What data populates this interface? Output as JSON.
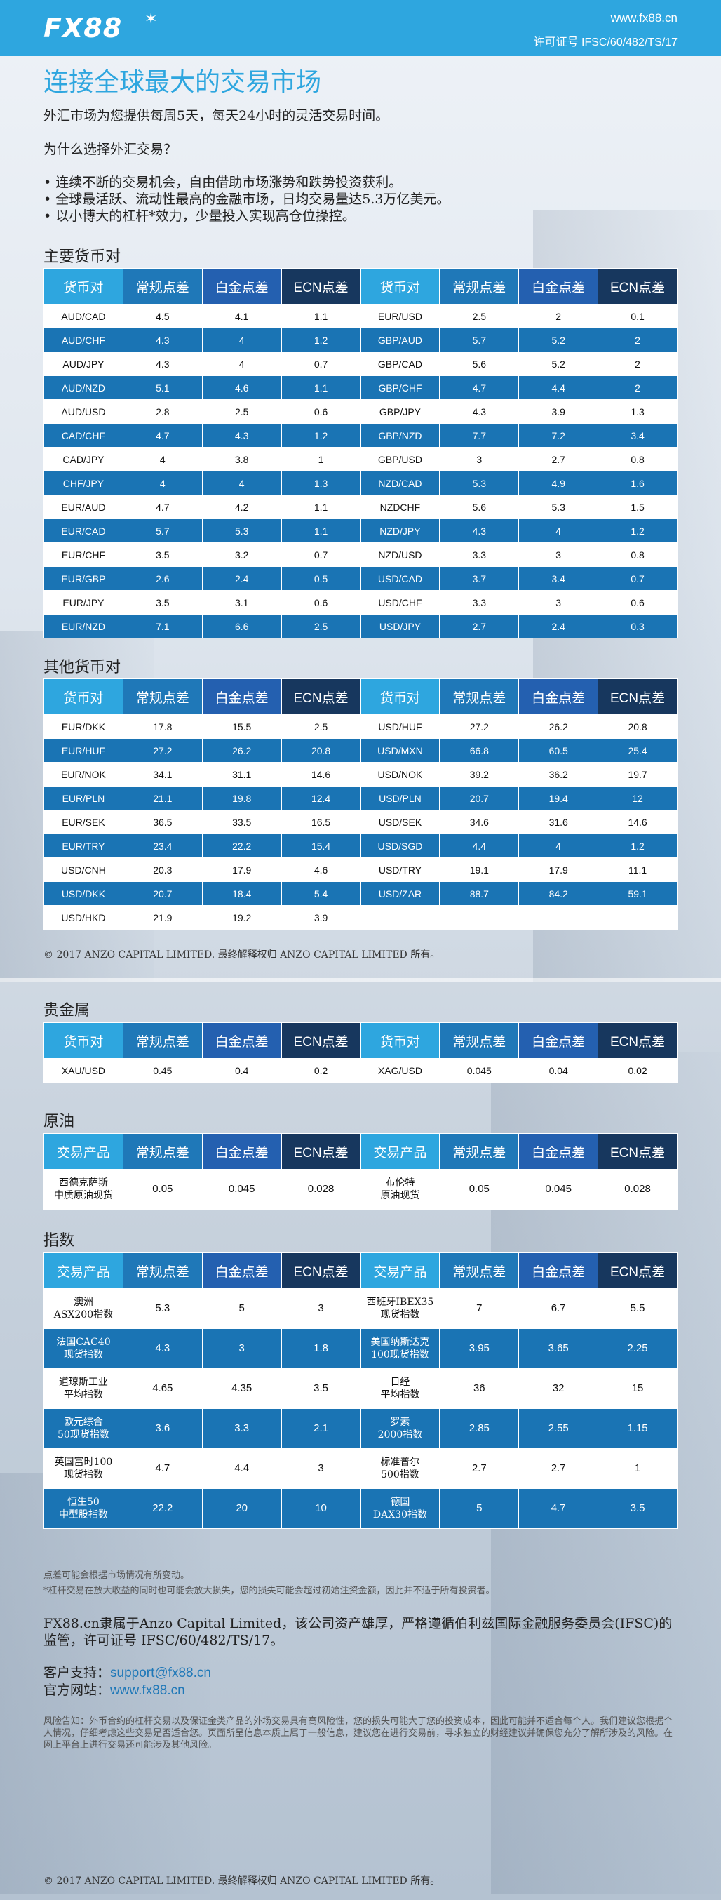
{
  "header": {
    "logo": "FX88",
    "site": "www.fx88.cn",
    "license": "许可证号 IFSC/60/482/TS/17"
  },
  "intro": {
    "title": "连接全球最大的交易市场",
    "subtitle": "外汇市场为您提供每周5天，每天24小时的灵活交易时间。",
    "why": "为什么选择外汇交易？",
    "bullets": [
      "• 连续不断的交易机会，自由借助市场涨势和跌势投资获利。",
      "• 全球最活跃、流动性最高的金融市场，日均交易量达5.3万亿美元。",
      "• 以小博大的杠杆*效力，少量投入实现高仓位操控。"
    ]
  },
  "headers_fx": [
    "货币对",
    "常规点差",
    "白金点差",
    "ECN点差",
    "货币对",
    "常规点差",
    "白金点差",
    "ECN点差"
  ],
  "headers_prod": [
    "交易产品",
    "常规点差",
    "白金点差",
    "ECN点差",
    "交易产品",
    "常规点差",
    "白金点差",
    "ECN点差"
  ],
  "major": {
    "title": "主要货币对",
    "rows": [
      [
        "AUD/CAD",
        "4.5",
        "4.1",
        "1.1",
        "EUR/USD",
        "2.5",
        "2",
        "0.1"
      ],
      [
        "AUD/CHF",
        "4.3",
        "4",
        "1.2",
        "GBP/AUD",
        "5.7",
        "5.2",
        "2"
      ],
      [
        "AUD/JPY",
        "4.3",
        "4",
        "0.7",
        "GBP/CAD",
        "5.6",
        "5.2",
        "2"
      ],
      [
        "AUD/NZD",
        "5.1",
        "4.6",
        "1.1",
        "GBP/CHF",
        "4.7",
        "4.4",
        "2"
      ],
      [
        "AUD/USD",
        "2.8",
        "2.5",
        "0.6",
        "GBP/JPY",
        "4.3",
        "3.9",
        "1.3"
      ],
      [
        "CAD/CHF",
        "4.7",
        "4.3",
        "1.2",
        "GBP/NZD",
        "7.7",
        "7.2",
        "3.4"
      ],
      [
        "CAD/JPY",
        "4",
        "3.8",
        "1",
        "GBP/USD",
        "3",
        "2.7",
        "0.8"
      ],
      [
        "CHF/JPY",
        "4",
        "4",
        "1.3",
        "NZD/CAD",
        "5.3",
        "4.9",
        "1.6"
      ],
      [
        "EUR/AUD",
        "4.7",
        "4.2",
        "1.1",
        "NZDCHF",
        "5.6",
        "5.3",
        "1.5"
      ],
      [
        "EUR/CAD",
        "5.7",
        "5.3",
        "1.1",
        "NZD/JPY",
        "4.3",
        "4",
        "1.2"
      ],
      [
        "EUR/CHF",
        "3.5",
        "3.2",
        "0.7",
        "NZD/USD",
        "3.3",
        "3",
        "0.8"
      ],
      [
        "EUR/GBP",
        "2.6",
        "2.4",
        "0.5",
        "USD/CAD",
        "3.7",
        "3.4",
        "0.7"
      ],
      [
        "EUR/JPY",
        "3.5",
        "3.1",
        "0.6",
        "USD/CHF",
        "3.3",
        "3",
        "0.6"
      ],
      [
        "EUR/NZD",
        "7.1",
        "6.6",
        "2.5",
        "USD/JPY",
        "2.7",
        "2.4",
        "0.3"
      ]
    ]
  },
  "other": {
    "title": "其他货币对",
    "rows": [
      [
        "EUR/DKK",
        "17.8",
        "15.5",
        "2.5",
        "USD/HUF",
        "27.2",
        "26.2",
        "20.8"
      ],
      [
        "EUR/HUF",
        "27.2",
        "26.2",
        "20.8",
        "USD/MXN",
        "66.8",
        "60.5",
        "25.4"
      ],
      [
        "EUR/NOK",
        "34.1",
        "31.1",
        "14.6",
        "USD/NOK",
        "39.2",
        "36.2",
        "19.7"
      ],
      [
        "EUR/PLN",
        "21.1",
        "19.8",
        "12.4",
        "USD/PLN",
        "20.7",
        "19.4",
        "12"
      ],
      [
        "EUR/SEK",
        "36.5",
        "33.5",
        "16.5",
        "USD/SEK",
        "34.6",
        "31.6",
        "14.6"
      ],
      [
        "EUR/TRY",
        "23.4",
        "22.2",
        "15.4",
        "USD/SGD",
        "4.4",
        "4",
        "1.2"
      ],
      [
        "USD/CNH",
        "20.3",
        "17.9",
        "4.6",
        "USD/TRY",
        "19.1",
        "17.9",
        "11.1"
      ],
      [
        "USD/DKK",
        "20.7",
        "18.4",
        "5.4",
        "USD/ZAR",
        "88.7",
        "84.2",
        "59.1"
      ],
      [
        "USD/HKD",
        "21.9",
        "19.2",
        "3.9",
        "",
        "",
        "",
        ""
      ]
    ]
  },
  "copyright": "© 2017 ANZO CAPITAL LIMITED. 最终解释权归 ANZO CAPITAL LIMITED 所有。",
  "metals": {
    "title": "贵金属",
    "rows": [
      [
        "XAU/USD",
        "0.45",
        "0.4",
        "0.2",
        "XAG/USD",
        "0.045",
        "0.04",
        "0.02"
      ]
    ]
  },
  "oil": {
    "title": "原油",
    "rows": [
      [
        "西德克萨斯\n中质原油现货",
        "0.05",
        "0.045",
        "0.028",
        "布伦特\n原油现货",
        "0.05",
        "0.045",
        "0.028"
      ]
    ]
  },
  "indices": {
    "title": "指数",
    "rows": [
      [
        "澳洲\nASX200指数",
        "5.3",
        "5",
        "3",
        "西班牙IBEX35\n现货指数",
        "7",
        "6.7",
        "5.5"
      ],
      [
        "法国CAC40\n现货指数",
        "4.3",
        "3",
        "1.8",
        "美国纳斯达克\n100现货指数",
        "3.95",
        "3.65",
        "2.25"
      ],
      [
        "道琼斯工业\n平均指数",
        "4.65",
        "4.35",
        "3.5",
        "日经\n平均指数",
        "36",
        "32",
        "15"
      ],
      [
        "欧元综合\n50现货指数",
        "3.6",
        "3.3",
        "2.1",
        "罗素\n2000指数",
        "2.85",
        "2.55",
        "1.15"
      ],
      [
        "英国富时100\n现货指数",
        "4.7",
        "4.4",
        "3",
        "标准普尔\n500指数",
        "2.7",
        "2.7",
        "1"
      ],
      [
        "恒生50\n中型股指数",
        "22.2",
        "20",
        "10",
        "德国\nDAX30指数",
        "5",
        "4.7",
        "3.5"
      ]
    ]
  },
  "notes": [
    "点差可能会根据市场情况有所变动。",
    "*杠杆交易在放大收益的同时也可能会放大损失，您的损失可能会超过初始注资金额，因此并不适于所有投资者。"
  ],
  "regulation": "FX88.cn隶属于Anzo Capital Limited，该公司资产雄厚，严格遵循伯利兹国际金融服务委员会(IFSC)的监管，许可证号 IFSC/60/482/TS/17。",
  "contact": {
    "support_label": "客户支持：",
    "support": "support@fx88.cn",
    "web_label": "官方网站：",
    "web": "www.fx88.cn"
  },
  "risk": "风险告知：外币合约的杠杆交易以及保证金类产品的外场交易具有高风险性，您的损失可能大于您的投资成本，因此可能并不适合每个人。我们建议您根据个人情况，仔细考虑这些交易是否适合您。页面所呈信息本质上属于一般信息，建议您在进行交易前，寻求独立的财经建议并确保您充分了解所涉及的风险。在网上平台上进行交易还可能涉及其他风险。"
}
